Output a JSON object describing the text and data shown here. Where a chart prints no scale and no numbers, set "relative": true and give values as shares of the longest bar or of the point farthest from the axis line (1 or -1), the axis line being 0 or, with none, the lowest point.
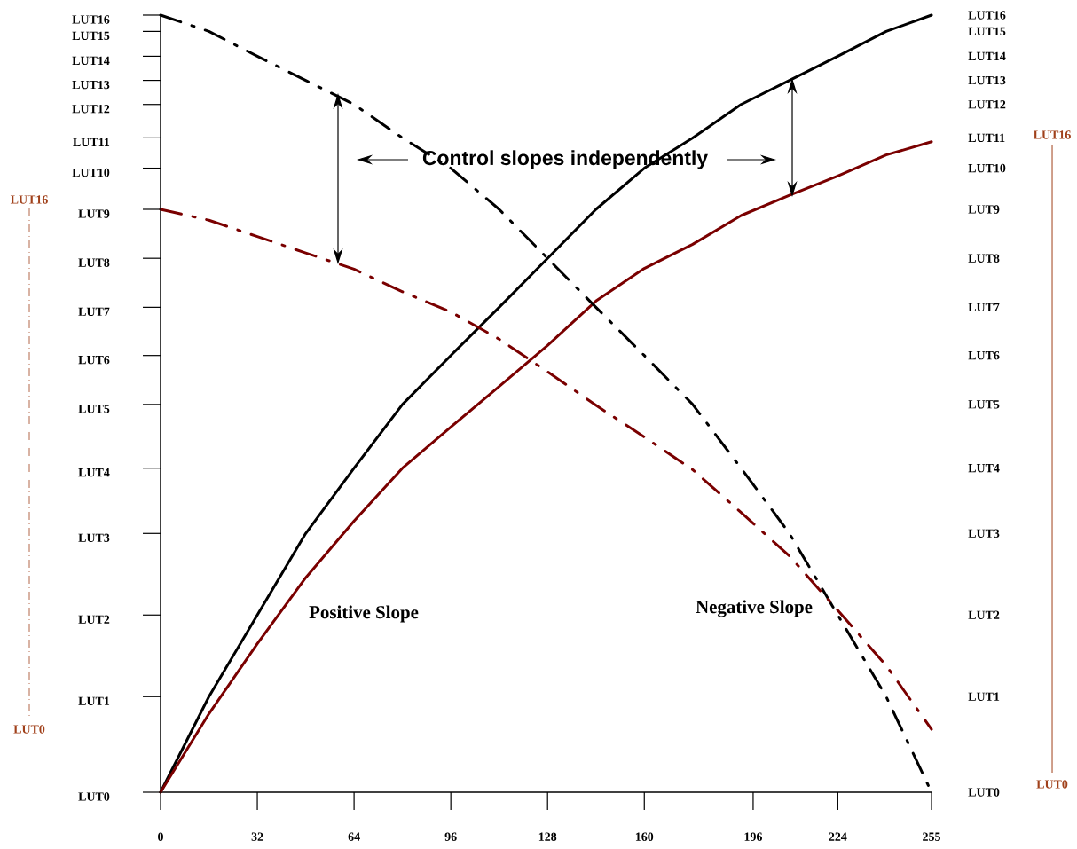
{
  "chart_data": {
    "type": "line",
    "relative": true,
    "x": [
      0,
      16,
      32,
      48,
      64,
      80,
      96,
      112,
      128,
      144,
      160,
      176,
      192,
      208,
      224,
      240,
      255
    ],
    "series": [
      {
        "color": "#000000",
        "line_style": "solid",
        "values": [
          0,
          0.123,
          0.228,
          0.333,
          0.417,
          0.499,
          0.562,
          0.624,
          0.687,
          0.75,
          0.803,
          0.842,
          0.885,
          0.916,
          0.947,
          0.979,
          1
        ]
      },
      {
        "color": "#7a0000",
        "line_style": "solid",
        "values": [
          0,
          0.101,
          0.191,
          0.276,
          0.349,
          0.417,
          0.47,
          0.522,
          0.575,
          0.632,
          0.674,
          0.705,
          0.742,
          0.768,
          0.793,
          0.82,
          0.837
        ]
      },
      {
        "color": "#000000",
        "line_style": "dashdot",
        "values": [
          1,
          0.979,
          0.947,
          0.916,
          0.885,
          0.842,
          0.803,
          0.75,
          0.687,
          0.624,
          0.562,
          0.499,
          0.417,
          0.333,
          0.228,
          0.123,
          0
        ]
      },
      {
        "color": "#7a0000",
        "line_style": "dashdot",
        "values": [
          0.75,
          0.736,
          0.715,
          0.694,
          0.673,
          0.644,
          0.618,
          0.583,
          0.541,
          0.498,
          0.457,
          0.415,
          0.36,
          0.304,
          0.234,
          0.163,
          0.081
        ]
      }
    ],
    "xlim": [
      0,
      255
    ],
    "xticks": [
      0,
      32,
      64,
      96,
      128,
      160,
      196,
      224,
      255
    ],
    "annotations": [
      "Control slopes independently",
      "Positive Slope",
      "Negative Slope",
      "LUT16",
      "LUT0",
      "LUT16",
      "LUT0",
      "LUT0",
      "LUT1",
      "LUT2",
      "LUT3",
      "LUT4",
      "LUT5",
      "LUT6",
      "LUT7",
      "LUT8",
      "LUT9",
      "LUT10",
      "LUT11",
      "LUT12",
      "LUT13",
      "LUT14",
      "LUT15",
      "LUT16",
      "LUT0",
      "LUT1",
      "LUT2",
      "LUT3",
      "LUT4",
      "LUT5",
      "LUT6",
      "LUT7",
      "LUT8",
      "LUT9",
      "LUT10",
      "LUT11",
      "LUT12",
      "LUT13",
      "LUT14",
      "LUT15",
      "LUT16"
    ]
  }
}
